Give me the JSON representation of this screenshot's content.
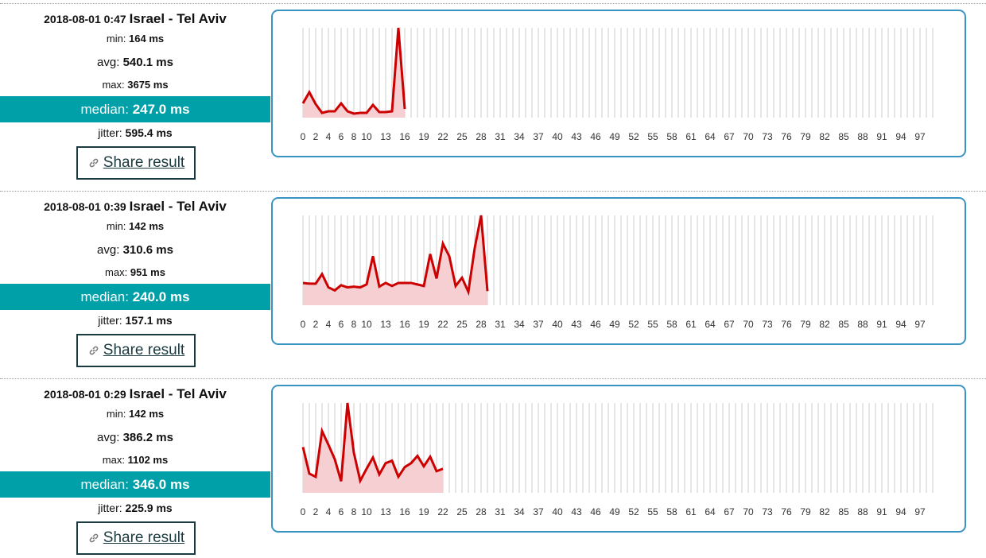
{
  "results": [
    {
      "date": "2018-08-01 0:47",
      "location": "Israel - Tel Aviv",
      "min": {
        "label": "min:",
        "value": "164 ms"
      },
      "avg": {
        "label": "avg:",
        "value": "540.1 ms"
      },
      "max": {
        "label": "max:",
        "value": "3675 ms"
      },
      "median": {
        "label": "median:",
        "value": "247.0 ms"
      },
      "jitter": {
        "label": "jitter:",
        "value": "595.4 ms"
      },
      "share": "Share result"
    },
    {
      "date": "2018-08-01 0:39",
      "location": "Israel - Tel Aviv",
      "min": {
        "label": "min:",
        "value": "142 ms"
      },
      "avg": {
        "label": "avg:",
        "value": "310.6 ms"
      },
      "max": {
        "label": "max:",
        "value": "951 ms"
      },
      "median": {
        "label": "median:",
        "value": "240.0 ms"
      },
      "jitter": {
        "label": "jitter:",
        "value": "157.1 ms"
      },
      "share": "Share result"
    },
    {
      "date": "2018-08-01 0:29",
      "location": "Israel - Tel Aviv",
      "min": {
        "label": "min:",
        "value": "142 ms"
      },
      "avg": {
        "label": "avg:",
        "value": "386.2 ms"
      },
      "max": {
        "label": "max:",
        "value": "1102 ms"
      },
      "median": {
        "label": "median:",
        "value": "346.0 ms"
      },
      "jitter": {
        "label": "jitter:",
        "value": "225.9 ms"
      },
      "share": "Share result"
    }
  ],
  "chart_data": [
    {
      "type": "line",
      "color": "#cc0000",
      "fill_color": "#f5cfd1",
      "grid_color": "#cccccc",
      "ylim": [
        0,
        3675
      ],
      "categories": [
        "0",
        null,
        "2",
        null,
        "4",
        null,
        "6",
        null,
        "8",
        null,
        "10",
        null,
        null,
        "13",
        null,
        null,
        "16",
        null,
        null,
        "19",
        null,
        null,
        "22",
        null,
        null,
        "25",
        null,
        null,
        "28",
        null,
        null,
        "31",
        null,
        null,
        "34",
        null,
        null,
        "37",
        null,
        null,
        "40",
        null,
        null,
        "43",
        null,
        null,
        "46",
        null,
        null,
        "49",
        null,
        null,
        "52",
        null,
        null,
        "55",
        null,
        null,
        "58",
        null,
        null,
        "61",
        null,
        null,
        "64",
        null,
        null,
        "67",
        null,
        null,
        "70",
        null,
        null,
        "73",
        null,
        null,
        "76",
        null,
        null,
        "79",
        null,
        null,
        "82",
        null,
        null,
        "85",
        null,
        null,
        "88",
        null,
        null,
        "91",
        null,
        null,
        "94",
        null,
        null,
        "97",
        null,
        null
      ],
      "values": [
        585,
        1040,
        553,
        195,
        260,
        260,
        585,
        260,
        164,
        195,
        195,
        520,
        228,
        228,
        260,
        3675,
        358,
        null,
        null,
        null,
        null,
        null,
        null,
        null,
        null,
        null,
        null,
        null,
        null,
        null,
        null,
        null,
        null,
        null,
        null,
        null,
        null,
        null,
        null,
        null,
        null,
        null,
        null,
        null,
        null,
        null,
        null,
        null,
        null,
        null,
        null,
        null,
        null,
        null,
        null,
        null,
        null,
        null,
        null,
        null,
        null,
        null,
        null,
        null,
        null,
        null,
        null,
        null,
        null,
        null,
        null,
        null,
        null,
        null,
        null,
        null,
        null,
        null,
        null,
        null,
        null,
        null,
        null,
        null,
        null,
        null,
        null,
        null,
        null,
        null,
        null,
        null,
        null,
        null,
        null,
        null,
        null,
        null,
        null,
        null
      ]
    },
    {
      "type": "line",
      "color": "#cc0000",
      "fill_color": "#f5cfd1",
      "grid_color": "#cccccc",
      "ylim": [
        0,
        951
      ],
      "categories": [
        "0",
        null,
        "2",
        null,
        "4",
        null,
        "6",
        null,
        "8",
        null,
        "10",
        null,
        null,
        "13",
        null,
        null,
        "16",
        null,
        null,
        "19",
        null,
        null,
        "22",
        null,
        null,
        "25",
        null,
        null,
        "28",
        null,
        null,
        "31",
        null,
        null,
        "34",
        null,
        null,
        "37",
        null,
        null,
        "40",
        null,
        null,
        "43",
        null,
        null,
        "46",
        null,
        null,
        "49",
        null,
        null,
        "52",
        null,
        null,
        "55",
        null,
        null,
        "58",
        null,
        null,
        "61",
        null,
        null,
        "64",
        null,
        null,
        "67",
        null,
        null,
        "70",
        null,
        null,
        "73",
        null,
        null,
        "76",
        null,
        null,
        "79",
        null,
        null,
        "82",
        null,
        null,
        "85",
        null,
        null,
        "88",
        null,
        null,
        "91",
        null,
        null,
        "94",
        null,
        null,
        "97",
        null,
        null
      ],
      "values": [
        236,
        228,
        228,
        330,
        189,
        157,
        212,
        189,
        197,
        189,
        220,
        519,
        197,
        236,
        204,
        236,
        236,
        236,
        220,
        204,
        542,
        283,
        652,
        519,
        204,
        291,
        142,
        605,
        951,
        149,
        null,
        null,
        null,
        null,
        null,
        null,
        null,
        null,
        null,
        null,
        null,
        null,
        null,
        null,
        null,
        null,
        null,
        null,
        null,
        null,
        null,
        null,
        null,
        null,
        null,
        null,
        null,
        null,
        null,
        null,
        null,
        null,
        null,
        null,
        null,
        null,
        null,
        null,
        null,
        null,
        null,
        null,
        null,
        null,
        null,
        null,
        null,
        null,
        null,
        null,
        null,
        null,
        null,
        null,
        null,
        null,
        null,
        null,
        null,
        null,
        null,
        null,
        null,
        null,
        null,
        null,
        null,
        null,
        null,
        null
      ]
    },
    {
      "type": "line",
      "color": "#cc0000",
      "fill_color": "#f5cfd1",
      "grid_color": "#cccccc",
      "ylim": [
        0,
        1102
      ],
      "categories": [
        "0",
        null,
        "2",
        null,
        "4",
        null,
        "6",
        null,
        "8",
        null,
        "10",
        null,
        null,
        "13",
        null,
        null,
        "16",
        null,
        null,
        "19",
        null,
        null,
        "22",
        null,
        null,
        "25",
        null,
        null,
        "28",
        null,
        null,
        "31",
        null,
        null,
        "34",
        null,
        null,
        "37",
        null,
        null,
        "40",
        null,
        null,
        "43",
        null,
        null,
        "46",
        null,
        null,
        "49",
        null,
        null,
        "52",
        null,
        null,
        "55",
        null,
        null,
        "58",
        null,
        null,
        "61",
        null,
        null,
        "64",
        null,
        null,
        "67",
        null,
        null,
        "70",
        null,
        null,
        "73",
        null,
        null,
        "76",
        null,
        null,
        "79",
        null,
        null,
        "82",
        null,
        null,
        "85",
        null,
        null,
        "88",
        null,
        null,
        "91",
        null,
        null,
        "94",
        null,
        null,
        "97",
        null,
        null
      ],
      "values": [
        561,
        236,
        197,
        758,
        590,
        413,
        142,
        1102,
        492,
        148,
        295,
        433,
        226,
        364,
        394,
        197,
        315,
        364,
        453,
        325,
        443,
        266,
        295,
        null,
        null,
        null,
        null,
        null,
        null,
        null,
        null,
        null,
        null,
        null,
        null,
        null,
        null,
        null,
        null,
        null,
        null,
        null,
        null,
        null,
        null,
        null,
        null,
        null,
        null,
        null,
        null,
        null,
        null,
        null,
        null,
        null,
        null,
        null,
        null,
        null,
        null,
        null,
        null,
        null,
        null,
        null,
        null,
        null,
        null,
        null,
        null,
        null,
        null,
        null,
        null,
        null,
        null,
        null,
        null,
        null,
        null,
        null,
        null,
        null,
        null,
        null,
        null,
        null,
        null,
        null,
        null,
        null,
        null,
        null,
        null,
        null,
        null,
        null,
        null,
        null
      ]
    }
  ]
}
